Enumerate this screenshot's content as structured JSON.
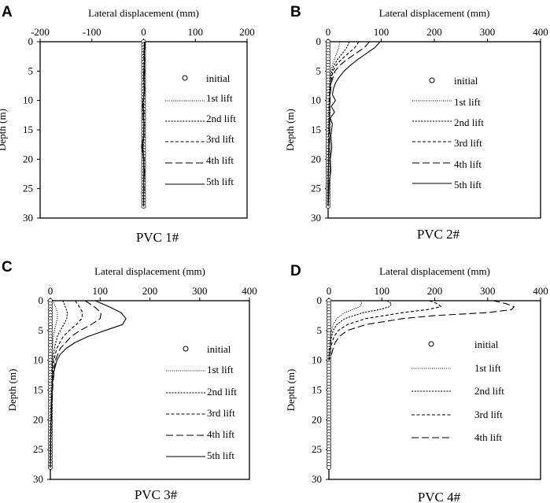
{
  "figure": {
    "legend_entries": [
      {
        "key": "initial",
        "label": "initial",
        "style": "circle"
      },
      {
        "key": "lift1",
        "label": "1st lift",
        "style": "dotted"
      },
      {
        "key": "lift2",
        "label": "2nd lift",
        "style": "fine-dash"
      },
      {
        "key": "lift3",
        "label": "3rd lift",
        "style": "medium-dash"
      },
      {
        "key": "lift4",
        "label": "4th lift",
        "style": "long-dash"
      },
      {
        "key": "lift5",
        "label": "5th lift",
        "style": "solid"
      }
    ]
  },
  "chart_data": [
    {
      "panel": "A",
      "caption": "PVC 1#",
      "type": "line",
      "xlabel": "Lateral displacement (mm)",
      "ylabel": "Depth (m)",
      "xlim": [
        -200,
        200
      ],
      "ylim": [
        0,
        30
      ],
      "xticks": [
        -200,
        -100,
        0,
        100,
        200
      ],
      "yticks": [
        0,
        5,
        10,
        15,
        20,
        25,
        30
      ],
      "initial_depths_max": 28,
      "series": [
        {
          "name": "1st lift",
          "depth": [
            0,
            2,
            4,
            6,
            8,
            10,
            12,
            14,
            16,
            18,
            20,
            22,
            24,
            26,
            28
          ],
          "displacement": [
            1,
            0,
            0.5,
            0,
            1,
            0.5,
            0,
            0.5,
            0,
            -0.5,
            0,
            0.5,
            0,
            0,
            0
          ]
        },
        {
          "name": "2nd lift",
          "depth": [
            0,
            2,
            4,
            6,
            8,
            10,
            12,
            14,
            16,
            18,
            20,
            22,
            24,
            26,
            28
          ],
          "displacement": [
            2,
            0.5,
            1,
            0,
            1,
            0,
            -0.5,
            0.5,
            0,
            -1,
            0,
            0.5,
            0,
            0,
            0
          ]
        },
        {
          "name": "3rd lift",
          "depth": [
            0,
            2,
            4,
            6,
            8,
            10,
            12,
            14,
            16,
            18,
            20,
            22,
            24,
            26,
            28
          ],
          "displacement": [
            2,
            1,
            1,
            0,
            1,
            0,
            -1,
            1,
            0,
            -2,
            0,
            1,
            0,
            0,
            0
          ]
        },
        {
          "name": "4th lift",
          "depth": [
            0,
            2,
            4,
            6,
            8,
            10,
            12,
            14,
            16,
            18,
            20,
            22,
            24,
            26,
            28
          ],
          "displacement": [
            3,
            1,
            1.5,
            0,
            1,
            -0.5,
            -1.5,
            1,
            0,
            -2.5,
            0,
            1,
            0,
            0,
            0
          ]
        },
        {
          "name": "5th lift",
          "depth": [
            0,
            1,
            2,
            3,
            4,
            5,
            6,
            7,
            8,
            9,
            10,
            11,
            12,
            13,
            14,
            15,
            16,
            17,
            18,
            19,
            20,
            21,
            22,
            23,
            24,
            25,
            26,
            27,
            28
          ],
          "displacement": [
            3,
            2,
            1,
            2,
            1,
            2,
            1,
            1,
            2,
            1,
            -1,
            -2,
            1,
            -1,
            1,
            0,
            1,
            -2,
            -4,
            -1,
            1,
            0,
            2,
            1,
            0,
            1,
            0,
            0,
            0
          ]
        }
      ]
    },
    {
      "panel": "B",
      "caption": "PVC 2#",
      "type": "line",
      "xlabel": "Lateral displacement (mm)",
      "ylabel": "Depth (m)",
      "xlim": [
        0,
        400
      ],
      "ylim": [
        0,
        30
      ],
      "xticks": [
        0,
        100,
        200,
        300,
        400
      ],
      "yticks": [
        0,
        5,
        10,
        15,
        20,
        25,
        30
      ],
      "initial_depths_max": 28,
      "series": [
        {
          "name": "1st lift",
          "depth": [
            0,
            1,
            2,
            3,
            4,
            5,
            7,
            9,
            12,
            16,
            20,
            24,
            28
          ],
          "displacement": [
            22,
            20,
            16,
            12,
            8,
            5,
            3,
            2,
            1,
            1,
            0,
            0,
            0
          ]
        },
        {
          "name": "2nd lift",
          "depth": [
            0,
            1,
            2,
            3,
            4,
            5,
            7,
            9,
            12,
            16,
            20,
            24,
            28
          ],
          "displacement": [
            40,
            35,
            27,
            18,
            11,
            7,
            4,
            2,
            2,
            1,
            1,
            0,
            0
          ]
        },
        {
          "name": "3rd lift",
          "depth": [
            0,
            1,
            2,
            3,
            4,
            5,
            7,
            9,
            12,
            16,
            20,
            24,
            28
          ],
          "displacement": [
            58,
            50,
            38,
            25,
            15,
            9,
            5,
            3,
            3,
            1,
            1,
            0,
            0
          ]
        },
        {
          "name": "4th lift",
          "depth": [
            0,
            1,
            2,
            3,
            4,
            5,
            7,
            9,
            12,
            16,
            20,
            24,
            28
          ],
          "displacement": [
            78,
            68,
            52,
            36,
            22,
            13,
            6,
            4,
            3,
            2,
            1,
            0,
            0
          ]
        },
        {
          "name": "5th lift",
          "depth": [
            0,
            1,
            2,
            3,
            4,
            5,
            6,
            7,
            8,
            9,
            10,
            11,
            12,
            13,
            14,
            16,
            18,
            20,
            22,
            24,
            26,
            28
          ],
          "displacement": [
            98,
            88,
            72,
            56,
            42,
            30,
            21,
            14,
            10,
            8,
            14,
            6,
            12,
            4,
            8,
            5,
            7,
            4,
            5,
            2,
            1,
            0
          ]
        }
      ]
    },
    {
      "panel": "C",
      "caption": "PVC 3#",
      "type": "line",
      "xlabel": "Lateral displacement (mm)",
      "ylabel": "Depth (m)",
      "xlim": [
        0,
        400
      ],
      "ylim": [
        0,
        30
      ],
      "xticks": [
        0,
        100,
        200,
        300,
        400
      ],
      "yticks": [
        0,
        5,
        10,
        15,
        20,
        25,
        30
      ],
      "initial_depths_max": 28,
      "series": [
        {
          "name": "1st lift",
          "depth": [
            0,
            1,
            2,
            3,
            4,
            5,
            6,
            8,
            10,
            14,
            18,
            22,
            28
          ],
          "displacement": [
            5,
            10,
            14,
            14,
            11,
            8,
            6,
            4,
            3,
            2,
            1,
            0,
            0
          ]
        },
        {
          "name": "2nd lift",
          "depth": [
            0,
            1,
            2,
            3,
            4,
            5,
            6,
            8,
            10,
            14,
            18,
            22,
            28
          ],
          "displacement": [
            25,
            30,
            34,
            33,
            27,
            20,
            14,
            8,
            5,
            3,
            2,
            1,
            0
          ]
        },
        {
          "name": "3rd lift",
          "depth": [
            0,
            1,
            2,
            3,
            4,
            5,
            6,
            8,
            10,
            14,
            18,
            22,
            28
          ],
          "displacement": [
            50,
            58,
            65,
            63,
            52,
            38,
            26,
            13,
            7,
            4,
            2,
            1,
            0
          ]
        },
        {
          "name": "4th lift",
          "depth": [
            0,
            1,
            2,
            3,
            4,
            5,
            6,
            8,
            10,
            14,
            18,
            22,
            28
          ],
          "displacement": [
            70,
            88,
            102,
            100,
            82,
            60,
            42,
            20,
            10,
            5,
            3,
            1,
            0
          ]
        },
        {
          "name": "5th lift",
          "depth": [
            0,
            1,
            2,
            3,
            4,
            5,
            6,
            7,
            8,
            9,
            10,
            12,
            14,
            18,
            22,
            28
          ],
          "displacement": [
            90,
            118,
            142,
            152,
            145,
            110,
            76,
            50,
            32,
            20,
            13,
            7,
            4,
            2,
            1,
            0
          ]
        }
      ]
    },
    {
      "panel": "D",
      "caption": "PVC 4#",
      "type": "line",
      "xlabel": "Lateral displacement (mm)",
      "ylabel": "Depth (m)",
      "xlim": [
        0,
        400
      ],
      "ylim": [
        0,
        30
      ],
      "xticks": [
        0,
        100,
        200,
        300,
        400
      ],
      "yticks": [
        0,
        5,
        10,
        15,
        20,
        25,
        30
      ],
      "initial_depths_max": 28,
      "series": [
        {
          "name": "1st lift",
          "depth": [
            0,
            0.5,
            1,
            1.5,
            2,
            3,
            4,
            5,
            6,
            7,
            8,
            9,
            10
          ],
          "displacement": [
            60,
            62,
            58,
            45,
            30,
            15,
            8,
            5,
            3,
            2,
            1,
            0,
            0
          ]
        },
        {
          "name": "2nd lift",
          "depth": [
            0,
            0.5,
            1,
            1.5,
            2,
            3,
            4,
            5,
            6,
            7,
            8,
            9,
            10
          ],
          "displacement": [
            110,
            118,
            115,
            95,
            65,
            30,
            15,
            8,
            5,
            3,
            2,
            1,
            0
          ]
        },
        {
          "name": "3rd lift",
          "depth": [
            0,
            0.5,
            1,
            1.5,
            2,
            3,
            4,
            5,
            6,
            7,
            8,
            9,
            10
          ],
          "displacement": [
            190,
            205,
            212,
            185,
            140,
            70,
            35,
            18,
            10,
            6,
            3,
            1,
            0
          ]
        },
        {
          "name": "4th lift",
          "depth": [
            0,
            0.5,
            1,
            1.5,
            2,
            2.5,
            3,
            4,
            5,
            6,
            7,
            8,
            9,
            10
          ],
          "displacement": [
            310,
            335,
            350,
            345,
            300,
            200,
            140,
            70,
            35,
            20,
            12,
            8,
            5,
            0
          ]
        }
      ]
    }
  ]
}
